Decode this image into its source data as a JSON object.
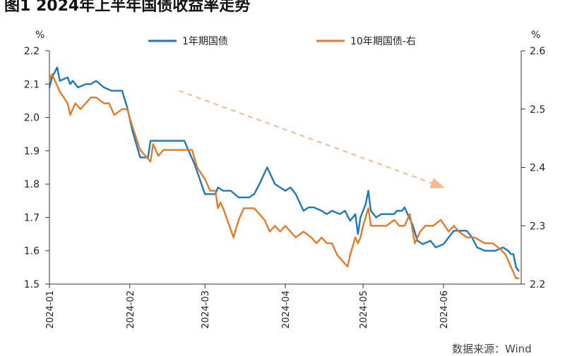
{
  "header": {
    "title": "图1 2024年上半年国债收益率走势"
  },
  "footer": {
    "source": "数据来源：Wind"
  },
  "chart_data": {
    "type": "line",
    "title": "图1 2024年上半年国债收益率走势",
    "left_axis": {
      "unit": "%",
      "ylim": [
        1.5,
        2.2
      ],
      "ticks": [
        "1.5",
        "1.6",
        "1.7",
        "1.8",
        "1.9",
        "2.0",
        "2.1",
        "2.2"
      ]
    },
    "right_axis": {
      "unit": "%",
      "ylim": [
        2.2,
        2.6
      ],
      "ticks": [
        "2.2",
        "2.3",
        "2.4",
        "2.5",
        "2.6"
      ]
    },
    "x_ticks": [
      "2024-01",
      "2024-02",
      "2024-03",
      "2024-04",
      "2024-05",
      "2024-06"
    ],
    "legend_position": "top",
    "grid": false,
    "trend_arrow": {
      "color": "#f5b894",
      "from": [
        "2024-02-20",
        2.08
      ],
      "to": [
        "2024-06-01",
        1.79
      ]
    },
    "series": [
      {
        "name": "1年期国债",
        "axis": "left",
        "color": "#1f77b4",
        "points": [
          [
            "2024-01-01",
            2.09
          ],
          [
            "2024-01-02",
            2.12
          ],
          [
            "2024-01-04",
            2.15
          ],
          [
            "2024-01-05",
            2.11
          ],
          [
            "2024-01-08",
            2.12
          ],
          [
            "2024-01-09",
            2.1
          ],
          [
            "2024-01-10",
            2.11
          ],
          [
            "2024-01-12",
            2.09
          ],
          [
            "2024-01-15",
            2.1
          ],
          [
            "2024-01-17",
            2.1
          ],
          [
            "2024-01-19",
            2.11
          ],
          [
            "2024-01-22",
            2.09
          ],
          [
            "2024-01-25",
            2.08
          ],
          [
            "2024-01-29",
            2.08
          ],
          [
            "2024-01-31",
            2.03
          ],
          [
            "2024-02-02",
            1.96
          ],
          [
            "2024-02-05",
            1.88
          ],
          [
            "2024-02-08",
            1.88
          ],
          [
            "2024-02-09",
            1.93
          ],
          [
            "2024-02-20",
            1.93
          ],
          [
            "2024-02-22",
            1.93
          ],
          [
            "2024-02-26",
            1.86
          ],
          [
            "2024-03-01",
            1.77
          ],
          [
            "2024-03-05",
            1.77
          ],
          [
            "2024-03-06",
            1.79
          ],
          [
            "2024-03-08",
            1.78
          ],
          [
            "2024-03-11",
            1.78
          ],
          [
            "2024-03-14",
            1.76
          ],
          [
            "2024-03-18",
            1.76
          ],
          [
            "2024-03-20",
            1.77
          ],
          [
            "2024-03-22",
            1.8
          ],
          [
            "2024-03-25",
            1.85
          ],
          [
            "2024-03-28",
            1.8
          ],
          [
            "2024-04-01",
            1.78
          ],
          [
            "2024-04-03",
            1.79
          ],
          [
            "2024-04-05",
            1.77
          ],
          [
            "2024-04-08",
            1.72
          ],
          [
            "2024-04-10",
            1.73
          ],
          [
            "2024-04-12",
            1.73
          ],
          [
            "2024-04-15",
            1.72
          ],
          [
            "2024-04-17",
            1.71
          ],
          [
            "2024-04-19",
            1.72
          ],
          [
            "2024-04-22",
            1.71
          ],
          [
            "2024-04-24",
            1.72
          ],
          [
            "2024-04-26",
            1.69
          ],
          [
            "2024-04-28",
            1.71
          ],
          [
            "2024-04-29",
            1.65
          ],
          [
            "2024-04-30",
            1.7
          ],
          [
            "2024-05-01",
            1.72
          ],
          [
            "2024-05-02",
            1.74
          ],
          [
            "2024-05-03",
            1.78
          ],
          [
            "2024-05-04",
            1.72
          ],
          [
            "2024-05-06",
            1.7
          ],
          [
            "2024-05-08",
            1.71
          ],
          [
            "2024-05-10",
            1.71
          ],
          [
            "2024-05-13",
            1.71
          ],
          [
            "2024-05-14",
            1.72
          ],
          [
            "2024-05-16",
            1.72
          ],
          [
            "2024-05-17",
            1.73
          ],
          [
            "2024-05-20",
            1.68
          ],
          [
            "2024-05-22",
            1.63
          ],
          [
            "2024-05-24",
            1.62
          ],
          [
            "2024-05-27",
            1.63
          ],
          [
            "2024-05-29",
            1.61
          ],
          [
            "2024-06-01",
            1.62
          ],
          [
            "2024-06-03",
            1.64
          ],
          [
            "2024-06-05",
            1.66
          ],
          [
            "2024-06-07",
            1.66
          ],
          [
            "2024-06-10",
            1.66
          ],
          [
            "2024-06-12",
            1.64
          ],
          [
            "2024-06-14",
            1.61
          ],
          [
            "2024-06-17",
            1.6
          ],
          [
            "2024-06-19",
            1.6
          ],
          [
            "2024-06-21",
            1.6
          ],
          [
            "2024-06-24",
            1.61
          ],
          [
            "2024-06-26",
            1.6
          ],
          [
            "2024-06-27",
            1.59
          ],
          [
            "2024-06-28",
            1.59
          ],
          [
            "2024-06-29",
            1.55
          ],
          [
            "2024-06-30",
            1.54
          ]
        ]
      },
      {
        "name": "10年期国债-右",
        "axis": "right",
        "color": "#e07b2e",
        "points": [
          [
            "2024-01-01",
            2.55
          ],
          [
            "2024-01-02",
            2.56
          ],
          [
            "2024-01-03",
            2.55
          ],
          [
            "2024-01-05",
            2.53
          ],
          [
            "2024-01-08",
            2.51
          ],
          [
            "2024-01-09",
            2.49
          ],
          [
            "2024-01-11",
            2.51
          ],
          [
            "2024-01-13",
            2.5
          ],
          [
            "2024-01-15",
            2.51
          ],
          [
            "2024-01-17",
            2.52
          ],
          [
            "2024-01-19",
            2.52
          ],
          [
            "2024-01-22",
            2.51
          ],
          [
            "2024-01-24",
            2.51
          ],
          [
            "2024-01-26",
            2.49
          ],
          [
            "2024-01-29",
            2.5
          ],
          [
            "2024-01-31",
            2.5
          ],
          [
            "2024-02-02",
            2.47
          ],
          [
            "2024-02-05",
            2.43
          ],
          [
            "2024-02-07",
            2.42
          ],
          [
            "2024-02-09",
            2.41
          ],
          [
            "2024-02-10",
            2.44
          ],
          [
            "2024-02-12",
            2.42
          ],
          [
            "2024-02-14",
            2.43
          ],
          [
            "2024-02-20",
            2.43
          ],
          [
            "2024-02-22",
            2.43
          ],
          [
            "2024-02-25",
            2.43
          ],
          [
            "2024-02-27",
            2.4
          ],
          [
            "2024-03-01",
            2.38
          ],
          [
            "2024-03-03",
            2.36
          ],
          [
            "2024-03-05",
            2.36
          ],
          [
            "2024-03-06",
            2.33
          ],
          [
            "2024-03-07",
            2.34
          ],
          [
            "2024-03-08",
            2.33
          ],
          [
            "2024-03-12",
            2.28
          ],
          [
            "2024-03-14",
            2.31
          ],
          [
            "2024-03-16",
            2.33
          ],
          [
            "2024-03-18",
            2.33
          ],
          [
            "2024-03-20",
            2.33
          ],
          [
            "2024-03-22",
            2.32
          ],
          [
            "2024-03-24",
            2.31
          ],
          [
            "2024-03-26",
            2.29
          ],
          [
            "2024-03-28",
            2.3
          ],
          [
            "2024-03-30",
            2.29
          ],
          [
            "2024-04-01",
            2.3
          ],
          [
            "2024-04-03",
            2.29
          ],
          [
            "2024-04-05",
            2.28
          ],
          [
            "2024-04-08",
            2.29
          ],
          [
            "2024-04-11",
            2.28
          ],
          [
            "2024-04-13",
            2.27
          ],
          [
            "2024-04-15",
            2.28
          ],
          [
            "2024-04-17",
            2.27
          ],
          [
            "2024-04-19",
            2.27
          ],
          [
            "2024-04-21",
            2.25
          ],
          [
            "2024-04-23",
            2.24
          ],
          [
            "2024-04-25",
            2.23
          ],
          [
            "2024-04-26",
            2.25
          ],
          [
            "2024-04-28",
            2.28
          ],
          [
            "2024-04-29",
            2.27
          ],
          [
            "2024-04-30",
            2.28
          ],
          [
            "2024-05-01",
            2.3
          ],
          [
            "2024-05-03",
            2.33
          ],
          [
            "2024-05-04",
            2.3
          ],
          [
            "2024-05-06",
            2.3
          ],
          [
            "2024-05-10",
            2.3
          ],
          [
            "2024-05-13",
            2.31
          ],
          [
            "2024-05-15",
            2.3
          ],
          [
            "2024-05-17",
            2.3
          ],
          [
            "2024-05-19",
            2.32
          ],
          [
            "2024-05-21",
            2.27
          ],
          [
            "2024-05-23",
            2.29
          ],
          [
            "2024-05-25",
            2.3
          ],
          [
            "2024-05-28",
            2.3
          ],
          [
            "2024-05-31",
            2.31
          ],
          [
            "2024-06-03",
            2.29
          ],
          [
            "2024-06-05",
            2.3
          ],
          [
            "2024-06-07",
            2.29
          ],
          [
            "2024-06-10",
            2.28
          ],
          [
            "2024-06-13",
            2.28
          ],
          [
            "2024-06-17",
            2.27
          ],
          [
            "2024-06-20",
            2.27
          ],
          [
            "2024-06-23",
            2.26
          ],
          [
            "2024-06-25",
            2.25
          ],
          [
            "2024-06-27",
            2.23
          ],
          [
            "2024-06-29",
            2.21
          ],
          [
            "2024-06-30",
            2.21
          ]
        ]
      }
    ]
  }
}
